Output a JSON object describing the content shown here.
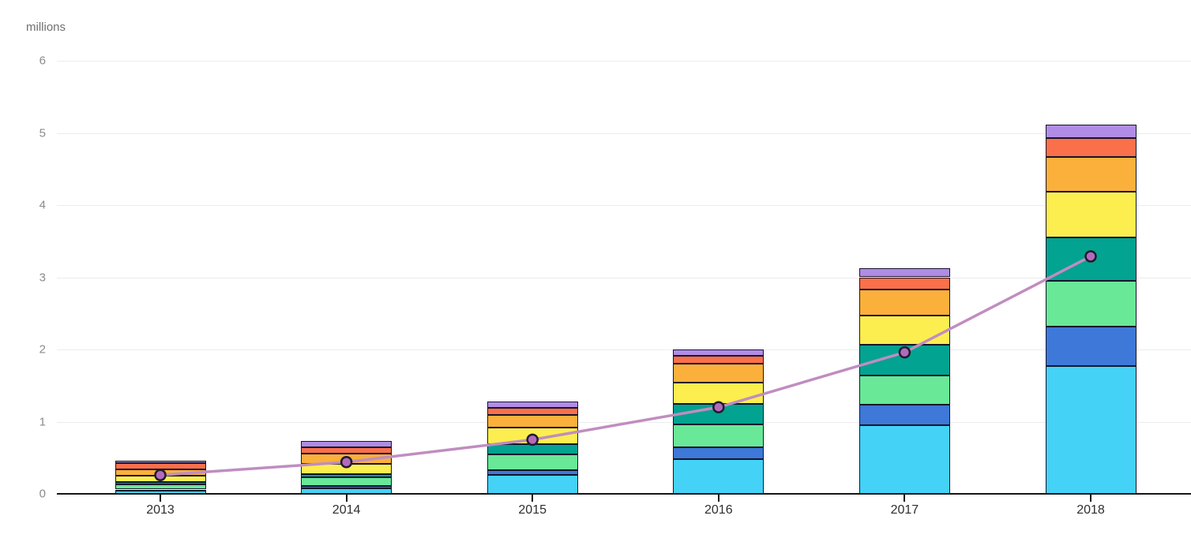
{
  "chart_data": {
    "type": "bar",
    "stacked": true,
    "title": "",
    "ylabel": "millions",
    "xlabel": "",
    "categories": [
      "2013",
      "2014",
      "2015",
      "2016",
      "2017",
      "2018"
    ],
    "series": [
      {
        "name": "light-blue",
        "color": "#44D2F6",
        "values": [
          0.04,
          0.08,
          0.26,
          0.48,
          0.95,
          1.77
        ]
      },
      {
        "name": "royal-blue",
        "color": "#3E78D8",
        "values": [
          0.02,
          0.03,
          0.07,
          0.17,
          0.29,
          0.55
        ]
      },
      {
        "name": "light-green",
        "color": "#69E898",
        "values": [
          0.07,
          0.12,
          0.22,
          0.31,
          0.4,
          0.63
        ]
      },
      {
        "name": "teal",
        "color": "#02A390",
        "values": [
          0.03,
          0.04,
          0.14,
          0.29,
          0.43,
          0.6
        ]
      },
      {
        "name": "yellow",
        "color": "#FCEE4F",
        "values": [
          0.09,
          0.14,
          0.23,
          0.29,
          0.4,
          0.64
        ]
      },
      {
        "name": "orange",
        "color": "#FAB03B",
        "values": [
          0.09,
          0.15,
          0.17,
          0.26,
          0.36,
          0.48
        ]
      },
      {
        "name": "red-orange",
        "color": "#FA704A",
        "values": [
          0.09,
          0.08,
          0.1,
          0.11,
          0.17,
          0.26
        ]
      },
      {
        "name": "light-purple",
        "color": "#B18CE6",
        "values": [
          0.03,
          0.09,
          0.09,
          0.09,
          0.13,
          0.18
        ]
      }
    ],
    "line_series": {
      "name": "trend-line",
      "color": "#C08DC0",
      "marker_fill": "#B569BE",
      "marker_stroke": "#1D1D2B",
      "values": [
        0.26,
        0.44,
        0.75,
        1.2,
        1.96,
        3.29
      ]
    },
    "totals": [
      0.46,
      0.73,
      1.28,
      2.0,
      3.13,
      5.11
    ],
    "yticks": [
      "0",
      "1",
      "2",
      "3",
      "4",
      "5",
      "6"
    ],
    "ylim": [
      0,
      6
    ],
    "grid": true,
    "legend": "none",
    "background": "#ffffff"
  }
}
